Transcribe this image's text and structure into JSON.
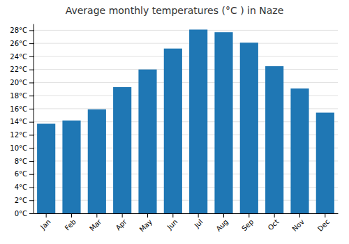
{
  "chart_data": {
    "type": "bar",
    "title": "Average monthly temperatures (°C ) in Naze",
    "categories": [
      "Jan",
      "Feb",
      "Mar",
      "Apr",
      "May",
      "Jun",
      "Jul",
      "Aug",
      "Sep",
      "Oct",
      "Nov",
      "Dec"
    ],
    "values": [
      13.7,
      14.2,
      15.9,
      19.3,
      22.0,
      25.2,
      28.1,
      27.7,
      26.1,
      22.5,
      19.1,
      15.4
    ],
    "ylim": [
      0,
      29
    ],
    "yticks": [
      {
        "value": 0,
        "label": "0°C"
      },
      {
        "value": 2,
        "label": "2°C"
      },
      {
        "value": 4,
        "label": "4°C"
      },
      {
        "value": 6,
        "label": "6°C"
      },
      {
        "value": 8,
        "label": "8°C"
      },
      {
        "value": 10,
        "label": "10°C"
      },
      {
        "value": 12,
        "label": "12°C"
      },
      {
        "value": 14,
        "label": "14°C"
      },
      {
        "value": 16,
        "label": "16°C"
      },
      {
        "value": 18,
        "label": "18°C"
      },
      {
        "value": 20,
        "label": "20°C"
      },
      {
        "value": 22,
        "label": "22°C"
      },
      {
        "value": 24,
        "label": "24°C"
      },
      {
        "value": 26,
        "label": "26°C"
      },
      {
        "value": 28,
        "label": "28°C"
      }
    ],
    "grid": true
  }
}
